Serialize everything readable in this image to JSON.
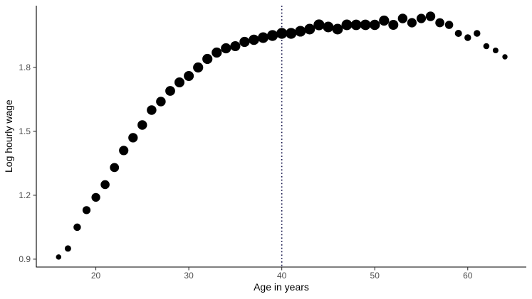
{
  "chart_data": {
    "type": "scatter",
    "title": "",
    "xlabel": "Age in years",
    "ylabel": "Log hourly wage",
    "x_ticks": [
      20,
      30,
      40,
      50,
      60
    ],
    "y_ticks": [
      0.9,
      1.2,
      1.5,
      1.8
    ],
    "xlim": [
      13.6,
      66.3
    ],
    "ylim": [
      0.863,
      2.09
    ],
    "grid": false,
    "legend": "none",
    "background_color": "#ffffff",
    "point_color": "#000000",
    "axis_line_color": "#000000",
    "tick_mark_color": "#333333",
    "tick_label_color": "#4d4d4d",
    "vline": {
      "x": 40,
      "linetype": "dotted",
      "color": "#14144a"
    },
    "point_size_note": "size = marker diameter in px, proportional to bin count",
    "points": [
      {
        "age": 16,
        "log_wage": 0.91,
        "size": 7.5
      },
      {
        "age": 17,
        "log_wage": 0.95,
        "size": 9.0
      },
      {
        "age": 18,
        "log_wage": 1.05,
        "size": 10.5
      },
      {
        "age": 19,
        "log_wage": 1.13,
        "size": 11.3
      },
      {
        "age": 20,
        "log_wage": 1.19,
        "size": 12.3
      },
      {
        "age": 21,
        "log_wage": 1.25,
        "size": 12.6
      },
      {
        "age": 22,
        "log_wage": 1.33,
        "size": 12.8
      },
      {
        "age": 23,
        "log_wage": 1.41,
        "size": 13.2
      },
      {
        "age": 24,
        "log_wage": 1.47,
        "size": 13.3
      },
      {
        "age": 25,
        "log_wage": 1.53,
        "size": 13.4
      },
      {
        "age": 26,
        "log_wage": 1.6,
        "size": 13.5
      },
      {
        "age": 27,
        "log_wage": 1.64,
        "size": 13.5
      },
      {
        "age": 28,
        "log_wage": 1.69,
        "size": 13.8
      },
      {
        "age": 29,
        "log_wage": 1.73,
        "size": 14.0
      },
      {
        "age": 30,
        "log_wage": 1.76,
        "size": 14.0
      },
      {
        "age": 31,
        "log_wage": 1.8,
        "size": 14.2
      },
      {
        "age": 32,
        "log_wage": 1.84,
        "size": 14.2
      },
      {
        "age": 33,
        "log_wage": 1.87,
        "size": 14.3
      },
      {
        "age": 34,
        "log_wage": 1.89,
        "size": 14.3
      },
      {
        "age": 35,
        "log_wage": 1.9,
        "size": 14.1
      },
      {
        "age": 36,
        "log_wage": 1.92,
        "size": 14.3
      },
      {
        "age": 37,
        "log_wage": 1.93,
        "size": 14.6
      },
      {
        "age": 38,
        "log_wage": 1.94,
        "size": 15.0
      },
      {
        "age": 39,
        "log_wage": 1.95,
        "size": 15.2
      },
      {
        "age": 40,
        "log_wage": 1.96,
        "size": 15.3
      },
      {
        "age": 41,
        "log_wage": 1.96,
        "size": 15.3
      },
      {
        "age": 42,
        "log_wage": 1.97,
        "size": 15.1
      },
      {
        "age": 43,
        "log_wage": 1.98,
        "size": 15.0
      },
      {
        "age": 44,
        "log_wage": 2.0,
        "size": 15.3
      },
      {
        "age": 45,
        "log_wage": 1.99,
        "size": 15.0
      },
      {
        "age": 46,
        "log_wage": 1.98,
        "size": 15.0
      },
      {
        "age": 47,
        "log_wage": 2.0,
        "size": 15.0
      },
      {
        "age": 48,
        "log_wage": 2.0,
        "size": 14.8
      },
      {
        "age": 49,
        "log_wage": 2.0,
        "size": 14.7
      },
      {
        "age": 50,
        "log_wage": 2.0,
        "size": 14.5
      },
      {
        "age": 51,
        "log_wage": 2.02,
        "size": 14.3
      },
      {
        "age": 52,
        "log_wage": 2.0,
        "size": 14.0
      },
      {
        "age": 53,
        "log_wage": 2.03,
        "size": 13.5
      },
      {
        "age": 54,
        "log_wage": 2.01,
        "size": 13.2
      },
      {
        "age": 55,
        "log_wage": 2.03,
        "size": 13.2
      },
      {
        "age": 56,
        "log_wage": 2.04,
        "size": 13.4
      },
      {
        "age": 57,
        "log_wage": 2.01,
        "size": 12.7
      },
      {
        "age": 58,
        "log_wage": 2.0,
        "size": 11.6
      },
      {
        "age": 59,
        "log_wage": 1.96,
        "size": 10.0
      },
      {
        "age": 60,
        "log_wage": 1.94,
        "size": 9.4
      },
      {
        "age": 61,
        "log_wage": 1.96,
        "size": 9.4
      },
      {
        "age": 62,
        "log_wage": 1.9,
        "size": 8.6
      },
      {
        "age": 63,
        "log_wage": 1.88,
        "size": 8.0
      },
      {
        "age": 64,
        "log_wage": 1.85,
        "size": 7.4
      }
    ]
  }
}
